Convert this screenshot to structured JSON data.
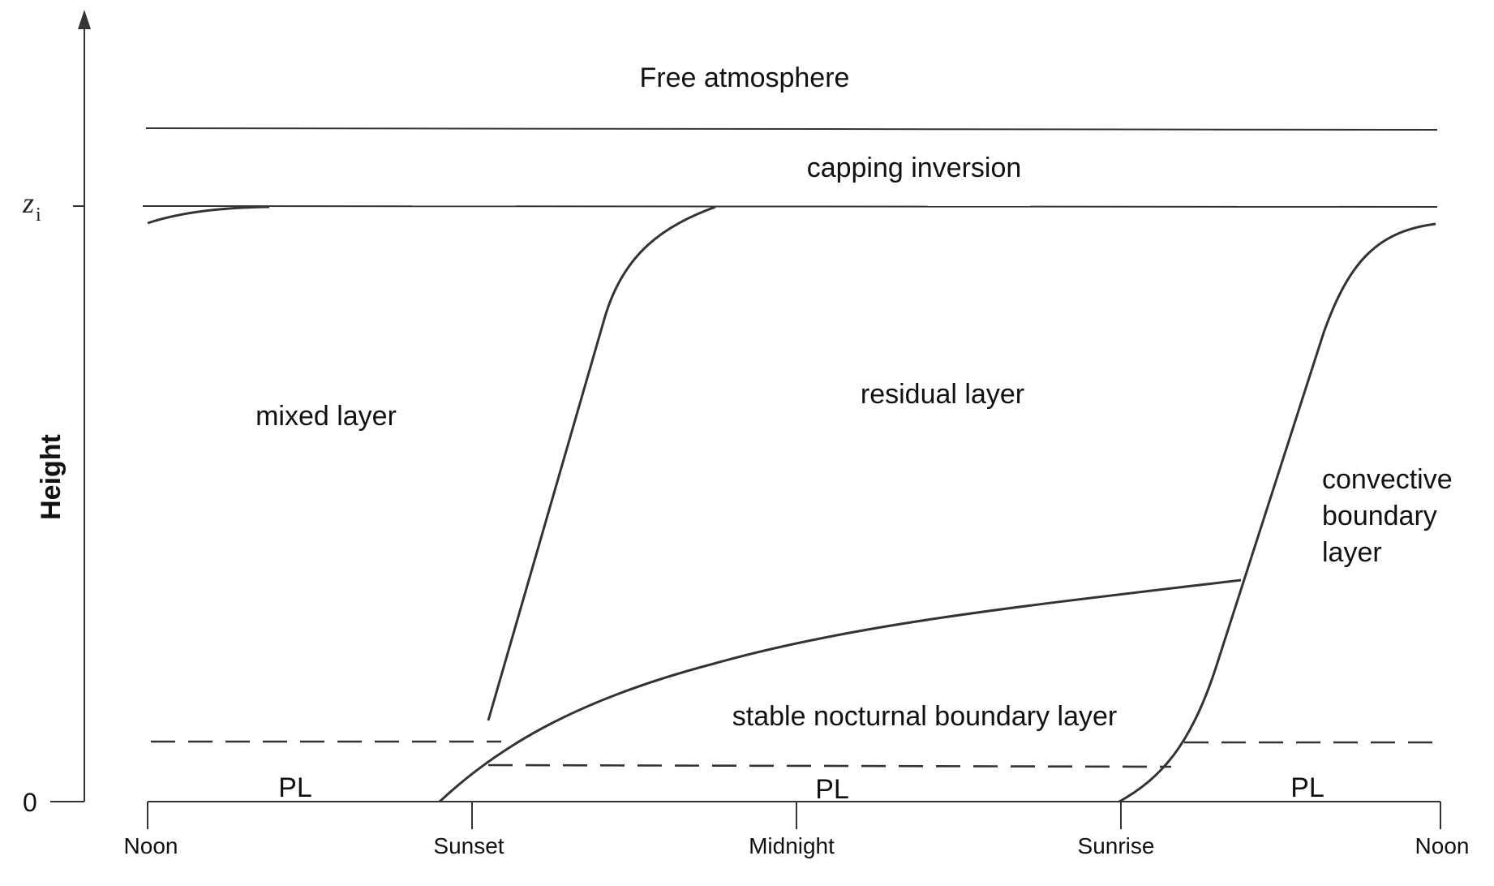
{
  "axis": {
    "y_label": "Height",
    "y_marker_top": "z",
    "y_marker_top_sub": "i",
    "y_marker_zero": "0"
  },
  "time_ticks": [
    "Noon",
    "Sunset",
    "Midnight",
    "Sunrise",
    "Noon"
  ],
  "regions": {
    "free_atmosphere": "Free atmosphere",
    "capping_inversion": "capping inversion",
    "mixed_layer": "mixed layer",
    "residual_layer": "residual layer",
    "convective_boundary_layer": [
      "convective",
      "boundary",
      "layer"
    ],
    "stable_nocturnal_boundary_layer": "stable nocturnal boundary layer",
    "surface_layer_labels": [
      "PL",
      "PL",
      "PL"
    ]
  }
}
